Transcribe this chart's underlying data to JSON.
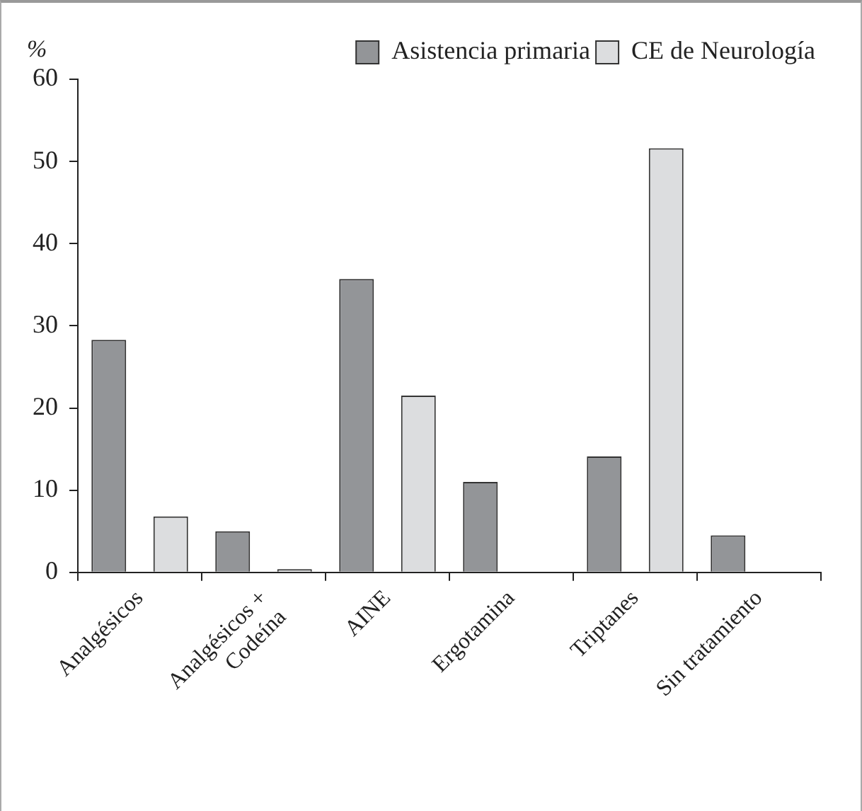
{
  "chart_data": {
    "type": "bar",
    "ylabel": "%",
    "categories": [
      "Analgésicos",
      "Analgésicos +\nCodeína",
      "AINE",
      "Ergotamina",
      "Triptanes",
      "Sin tratamiento"
    ],
    "series": [
      {
        "name": "Asistencia primaria",
        "color": "#939598",
        "values": [
          28.3,
          5.0,
          35.7,
          11.0,
          14.1,
          4.5
        ]
      },
      {
        "name": "CE de Neurología",
        "color": "#dcdddf",
        "values": [
          6.8,
          0.4,
          21.5,
          null,
          51.6,
          null
        ]
      }
    ],
    "ylim": [
      0,
      60
    ],
    "yticks": [
      0,
      10,
      20,
      30,
      40,
      50,
      60
    ],
    "grid": false,
    "legend": "top right"
  }
}
